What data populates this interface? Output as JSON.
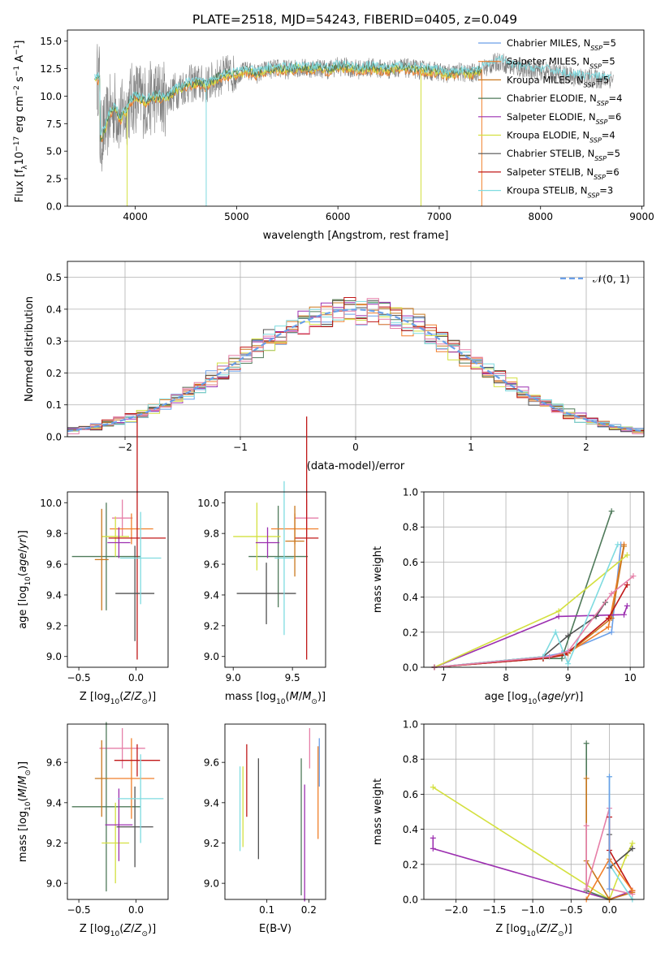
{
  "figure_title": "PLATE=2518, MJD=54243, FIBERID=0405, z=0.049",
  "colors": {
    "c0": "#6a9fe8",
    "c1": "#f07f2a",
    "c2": "#c9781e",
    "c3": "#4f7a5a",
    "c4": "#9c2fb0",
    "c5": "#d4e040",
    "c6": "#505050",
    "c7": "#c01818",
    "c8": "#7fdbe0",
    "c9": "#e67fa8",
    "grey": "#808080"
  },
  "chart_data": [
    {
      "id": "spectrum",
      "type": "line",
      "title": "PLATE=2518, MJD=54243, FIBERID=0405, z=0.049",
      "xlabel": "wavelength [Angstrom, rest frame]",
      "ylabel": "Flux [f_λ10^-17 erg cm^-2 s^-1 A^-1]",
      "xlim": [
        3330,
        9020
      ],
      "ylim": [
        0,
        16
      ],
      "xticks": [
        4000,
        5000,
        6000,
        7000,
        8000,
        9000
      ],
      "yticks": [
        0.0,
        2.5,
        5.0,
        7.5,
        10.0,
        12.5,
        15.0
      ],
      "grid": false,
      "legend_position": "top-right",
      "legend": [
        {
          "label": "Chabrier MILES, N_SSP=5",
          "color": "c0"
        },
        {
          "label": "Salpeter MILES, N_SSP=5",
          "color": "c1"
        },
        {
          "label": "Kroupa MILES, N_SSP=5",
          "color": "c2"
        },
        {
          "label": "Chabrier ELODIE, N_SSP=4",
          "color": "c3"
        },
        {
          "label": "Salpeter ELODIE, N_SSP=6",
          "color": "c4"
        },
        {
          "label": "Kroupa ELODIE, N_SSP=4",
          "color": "c5"
        },
        {
          "label": "Chabrier STELIB, N_SSP=5",
          "color": "c6"
        },
        {
          "label": "Salpeter STELIB, N_SSP=6",
          "color": "c7"
        },
        {
          "label": "Kroupa STELIB, N_SSP=3",
          "color": "c8"
        }
      ],
      "data_continuum": [
        [
          3650,
          6.0
        ],
        [
          3700,
          7.0
        ],
        [
          3750,
          8.5
        ],
        [
          3800,
          9.0
        ],
        [
          3850,
          8.0
        ],
        [
          3900,
          8.5
        ],
        [
          3950,
          9.5
        ],
        [
          4000,
          10.0
        ],
        [
          4100,
          9.5
        ],
        [
          4200,
          10.0
        ],
        [
          4300,
          9.8
        ],
        [
          4400,
          10.5
        ],
        [
          4500,
          11.0
        ],
        [
          4600,
          11.2
        ],
        [
          4700,
          11.0
        ],
        [
          4800,
          11.6
        ],
        [
          4900,
          12.0
        ],
        [
          5000,
          12.0
        ],
        [
          5100,
          12.3
        ],
        [
          5200,
          12.0
        ],
        [
          5300,
          12.4
        ],
        [
          5400,
          12.5
        ],
        [
          5500,
          12.4
        ],
        [
          5600,
          12.6
        ],
        [
          5700,
          12.5
        ],
        [
          5800,
          12.6
        ],
        [
          5900,
          12.4
        ],
        [
          6000,
          12.7
        ],
        [
          6100,
          12.6
        ],
        [
          6200,
          12.4
        ],
        [
          6300,
          12.6
        ],
        [
          6400,
          12.5
        ],
        [
          6500,
          12.4
        ],
        [
          6600,
          12.6
        ],
        [
          6700,
          12.5
        ],
        [
          6800,
          12.4
        ],
        [
          6900,
          12.3
        ],
        [
          7000,
          12.2
        ],
        [
          7100,
          12.0
        ],
        [
          7200,
          12.2
        ],
        [
          7300,
          12.0
        ],
        [
          7400,
          12.3
        ],
        [
          7500,
          12.8
        ],
        [
          7600,
          13.2
        ],
        [
          7700,
          12.7
        ],
        [
          7800,
          12.5
        ],
        [
          7900,
          12.4
        ],
        [
          8000,
          12.3
        ],
        [
          8100,
          12.2
        ],
        [
          8200,
          12.0
        ],
        [
          8300,
          11.8
        ],
        [
          8400,
          11.7
        ],
        [
          8500,
          11.6
        ],
        [
          8600,
          11.5
        ],
        [
          8700,
          11.6
        ]
      ],
      "model_range": [
        3600,
        7420
      ],
      "model_range_stelib": [
        3600,
        8700
      ],
      "dropouts": [
        {
          "x": 3920,
          "color": "c5"
        },
        {
          "x": 4700,
          "color": "c8"
        },
        {
          "x": 6820,
          "color": "c5"
        },
        {
          "x": 7420,
          "color": "c1"
        }
      ]
    },
    {
      "id": "residuals",
      "type": "histogram",
      "xlabel": "(data-model)/error",
      "ylabel": "Normed distribution",
      "xlim": [
        -2.5,
        2.5
      ],
      "ylim": [
        0,
        0.55
      ],
      "xticks": [
        -2,
        -1,
        0,
        1,
        2
      ],
      "yticks": [
        0.0,
        0.1,
        0.2,
        0.3,
        0.4,
        0.5
      ],
      "grid": true,
      "legend_position": "top-right",
      "legend": [
        {
          "label": "N(0,1)",
          "color": "c0",
          "style": "dashed"
        }
      ],
      "bin_width": 0.1,
      "bin_start": -2.5
    },
    {
      "id": "age_vs_Z",
      "type": "errorbar",
      "xlabel": "Z [log10(Z/Z⊙)]",
      "ylabel": "age [log10(age/yr)]",
      "xlim": [
        -0.6,
        0.28
      ],
      "ylim": [
        8.93,
        10.07
      ],
      "xticks": [
        -0.5,
        0.0
      ],
      "xticklabels": [
        "−0.5",
        "0.0"
      ],
      "yticks": [
        9.0,
        9.2,
        9.4,
        9.6,
        9.8,
        10.0
      ],
      "grid": false,
      "points": [
        {
          "x": -0.12,
          "xerr": 0.09,
          "y": 9.9,
          "yerr": 0.12,
          "color": "c9"
        },
        {
          "x": -0.26,
          "xerr": 0.3,
          "y": 9.65,
          "yerr": 0.35,
          "color": "c3"
        },
        {
          "x": -0.04,
          "xerr": 0.19,
          "y": 9.83,
          "yerr": 0.1,
          "color": "c1"
        },
        {
          "x": -0.18,
          "xerr": 0.12,
          "y": 9.78,
          "yerr": 0.13,
          "color": "c5"
        },
        {
          "x": -0.15,
          "xerr": 0.1,
          "y": 9.74,
          "yerr": 0.1,
          "color": "c4"
        },
        {
          "x": 0.01,
          "xerr": 0.25,
          "y": 9.77,
          "yerr": 0.79,
          "color": "c7"
        },
        {
          "x": -0.01,
          "xerr": 0.17,
          "y": 9.41,
          "yerr": 0.31,
          "color": "c6"
        },
        {
          "x": 0.04,
          "xerr": 0.18,
          "y": 9.64,
          "yerr": 0.3,
          "color": "c8"
        },
        {
          "x": -0.3,
          "xerr": 0.06,
          "y": 9.63,
          "yerr": 0.33,
          "color": "c2"
        }
      ]
    },
    {
      "id": "age_vs_mass",
      "type": "errorbar",
      "xlabel": "mass [log10(M/M⊙)]",
      "ylabel": "",
      "xlim": [
        8.93,
        9.78
      ],
      "ylim": [
        8.93,
        10.07
      ],
      "xticks": [
        9.0,
        9.5
      ],
      "yticks": [
        9.0,
        9.2,
        9.4,
        9.6,
        9.8,
        10.0
      ],
      "grid": false,
      "points": [
        {
          "x": 9.62,
          "xerr": 0.1,
          "y": 9.9,
          "yerr": 0.12,
          "color": "c9"
        },
        {
          "x": 9.38,
          "xerr": 0.25,
          "y": 9.65,
          "yerr": 0.33,
          "color": "c3"
        },
        {
          "x": 9.52,
          "xerr": 0.2,
          "y": 9.83,
          "yerr": 0.1,
          "color": "c1"
        },
        {
          "x": 9.2,
          "xerr": 0.2,
          "y": 9.78,
          "yerr": 0.22,
          "color": "c5"
        },
        {
          "x": 9.29,
          "xerr": 0.1,
          "y": 9.74,
          "yerr": 0.1,
          "color": "c4"
        },
        {
          "x": 9.62,
          "xerr": 0.1,
          "y": 9.77,
          "yerr": 0.79,
          "color": "c7"
        },
        {
          "x": 9.28,
          "xerr": 0.25,
          "y": 9.41,
          "yerr": 0.2,
          "color": "c6"
        },
        {
          "x": 9.43,
          "xerr": 0.08,
          "y": 9.64,
          "yerr": 0.5,
          "color": "c8"
        },
        {
          "x": 9.52,
          "xerr": 0.08,
          "y": 9.75,
          "yerr": 0.23,
          "color": "c2"
        }
      ]
    },
    {
      "id": "weight_vs_age",
      "type": "line",
      "xlabel": "age [log10(age/yr)]",
      "ylabel": "mass weight",
      "xlim": [
        6.68,
        10.22
      ],
      "ylim": [
        0,
        1
      ],
      "xticks": [
        7,
        8,
        9,
        10
      ],
      "yticks": [
        0.0,
        0.2,
        0.4,
        0.6,
        0.8,
        1.0
      ],
      "grid": true,
      "series": [
        {
          "color": "c0",
          "x": [
            6.85,
            8.6,
            8.9,
            9.7,
            9.85
          ],
          "y": [
            0.0,
            0.06,
            0.08,
            0.2,
            0.7
          ]
        },
        {
          "color": "c1",
          "x": [
            6.85,
            8.6,
            8.95,
            9.65,
            9.9
          ],
          "y": [
            0.0,
            0.05,
            0.07,
            0.23,
            0.7
          ]
        },
        {
          "color": "c2",
          "x": [
            6.85,
            8.6,
            9.0,
            9.7,
            9.9
          ],
          "y": [
            0.0,
            0.05,
            0.08,
            0.28,
            0.69
          ]
        },
        {
          "color": "c3",
          "x": [
            6.85,
            8.6,
            8.9,
            9.7
          ],
          "y": [
            0.0,
            0.05,
            0.05,
            0.89
          ]
        },
        {
          "color": "c4",
          "x": [
            6.85,
            8.85,
            9.9,
            9.95
          ],
          "y": [
            0.0,
            0.29,
            0.3,
            0.35
          ]
        },
        {
          "color": "c5",
          "x": [
            6.85,
            8.85,
            9.95
          ],
          "y": [
            0.0,
            0.32,
            0.64
          ]
        },
        {
          "color": "c6",
          "x": [
            6.85,
            8.6,
            9.0,
            9.45,
            9.6
          ],
          "y": [
            0.0,
            0.06,
            0.18,
            0.29,
            0.37
          ]
        },
        {
          "color": "c7",
          "x": [
            6.85,
            8.6,
            8.95,
            9.65,
            9.95
          ],
          "y": [
            0.0,
            0.05,
            0.07,
            0.28,
            0.47
          ]
        },
        {
          "color": "c8",
          "x": [
            6.85,
            8.6,
            8.8,
            9.0,
            9.8
          ],
          "y": [
            0.0,
            0.06,
            0.2,
            0.02,
            0.7
          ]
        },
        {
          "color": "c9",
          "x": [
            6.85,
            8.7,
            9.0,
            9.7,
            10.05
          ],
          "y": [
            0.0,
            0.06,
            0.09,
            0.42,
            0.52
          ]
        }
      ]
    },
    {
      "id": "mass_vs_Z",
      "type": "errorbar",
      "xlabel": "Z [log10(Z/Z⊙)]",
      "ylabel": "mass [log10(M/M⊙)]",
      "xlim": [
        -0.6,
        0.28
      ],
      "ylim": [
        8.92,
        9.79
      ],
      "xticks": [
        -0.5,
        0.0
      ],
      "xticklabels": [
        "−0.5",
        "0.0"
      ],
      "yticks": [
        9.0,
        9.2,
        9.4,
        9.6
      ],
      "grid": false,
      "points": [
        {
          "x": -0.12,
          "xerr": 0.2,
          "y": 9.67,
          "yerr": 0.1,
          "color": "c9"
        },
        {
          "x": -0.26,
          "xerr": 0.3,
          "y": 9.38,
          "yerr": 0.42,
          "color": "c3"
        },
        {
          "x": -0.04,
          "xerr": 0.2,
          "y": 9.52,
          "yerr": 0.2,
          "color": "c1"
        },
        {
          "x": -0.18,
          "xerr": 0.12,
          "y": 9.2,
          "yerr": 0.2,
          "color": "c5"
        },
        {
          "x": -0.15,
          "xerr": 0.12,
          "y": 9.29,
          "yerr": 0.18,
          "color": "c4"
        },
        {
          "x": 0.01,
          "xerr": 0.2,
          "y": 9.61,
          "yerr": 0.08,
          "color": "c7"
        },
        {
          "x": -0.01,
          "xerr": 0.16,
          "y": 9.28,
          "yerr": 0.2,
          "color": "c6"
        },
        {
          "x": 0.04,
          "xerr": 0.2,
          "y": 9.42,
          "yerr": 0.22,
          "color": "c8"
        },
        {
          "x": -0.3,
          "xerr": 0.06,
          "y": 9.52,
          "yerr": 0.19,
          "color": "c2"
        }
      ]
    },
    {
      "id": "mass_vs_EBV",
      "type": "errorbar",
      "xlabel": "E(B-V)",
      "ylabel": "",
      "xlim": [
        0.0,
        0.24
      ],
      "ylim": [
        8.92,
        9.79
      ],
      "xticks": [
        0.1,
        0.2
      ],
      "yticks": [
        9.0,
        9.2,
        9.4,
        9.6
      ],
      "grid": false,
      "points": [
        {
          "x": 0.202,
          "y": 9.67,
          "yerr": 0.1,
          "color": "c9"
        },
        {
          "x": 0.182,
          "y": 9.28,
          "yerr": 0.34,
          "color": "c3"
        },
        {
          "x": 0.222,
          "y": 9.45,
          "yerr": 0.23,
          "color": "c1"
        },
        {
          "x": 0.043,
          "y": 9.38,
          "yerr": 0.2,
          "color": "c5"
        },
        {
          "x": 0.19,
          "y": 9.2,
          "yerr": 0.29,
          "color": "c4"
        },
        {
          "x": 0.052,
          "y": 9.51,
          "yerr": 0.18,
          "color": "c7"
        },
        {
          "x": 0.08,
          "y": 9.37,
          "yerr": 0.25,
          "color": "c6"
        },
        {
          "x": 0.036,
          "y": 9.37,
          "yerr": 0.21,
          "color": "c8"
        },
        {
          "x": 0.225,
          "y": 9.6,
          "yerr": 0.12,
          "color": "c0"
        }
      ]
    },
    {
      "id": "weight_vs_Z",
      "type": "line",
      "xlabel": "Z [log10(Z/Z⊙)]",
      "ylabel": "mass weight",
      "xlim": [
        -2.42,
        0.45
      ],
      "ylim": [
        0,
        1
      ],
      "xticks": [
        -2.0,
        -1.5,
        -1.0,
        -0.5,
        0.0
      ],
      "xticklabels": [
        "−2.0",
        "−1.5",
        "−1.0",
        "−0.5",
        "0.0"
      ],
      "yticks": [
        0.0,
        0.2,
        0.4,
        0.6,
        0.8,
        1.0
      ],
      "grid": true,
      "series": [
        {
          "color": "c5",
          "x": [
            -2.3,
            0.0,
            0.22,
            0.3
          ],
          "y": [
            0.64,
            0.0,
            0.25,
            0.32
          ]
        },
        {
          "color": "c4",
          "x": [
            -2.3,
            -2.3,
            0.0,
            0.3
          ],
          "y": [
            0.35,
            0.29,
            0.0,
            0.05
          ]
        },
        {
          "color": "c3",
          "x": [
            -0.3,
            -0.3,
            0.0
          ],
          "y": [
            0.89,
            0.05,
            0.0
          ]
        },
        {
          "color": "c2",
          "x": [
            -0.3,
            -0.3,
            0.0,
            0.3
          ],
          "y": [
            0.69,
            0.22,
            0.0,
            0.04
          ]
        },
        {
          "color": "c9",
          "x": [
            -0.3,
            -0.3,
            0.0,
            0.0,
            0.3
          ],
          "y": [
            0.42,
            0.06,
            0.52,
            0.06,
            0.03
          ]
        },
        {
          "color": "c8",
          "x": [
            0.0,
            0.0,
            0.3
          ],
          "y": [
            0.7,
            0.2,
            0.0
          ]
        },
        {
          "color": "c6",
          "x": [
            0.0,
            0.0,
            0.3
          ],
          "y": [
            0.37,
            0.18,
            0.29
          ]
        },
        {
          "color": "c7",
          "x": [
            0.0,
            0.0,
            0.3
          ],
          "y": [
            0.47,
            0.28,
            0.05
          ]
        },
        {
          "color": "c1",
          "x": [
            -0.3,
            0.0,
            0.3
          ],
          "y": [
            0.0,
            0.23,
            0.05
          ]
        },
        {
          "color": "c0",
          "x": [
            0.0,
            0.0,
            0.0
          ],
          "y": [
            0.7,
            0.2,
            0.06
          ]
        }
      ]
    }
  ]
}
